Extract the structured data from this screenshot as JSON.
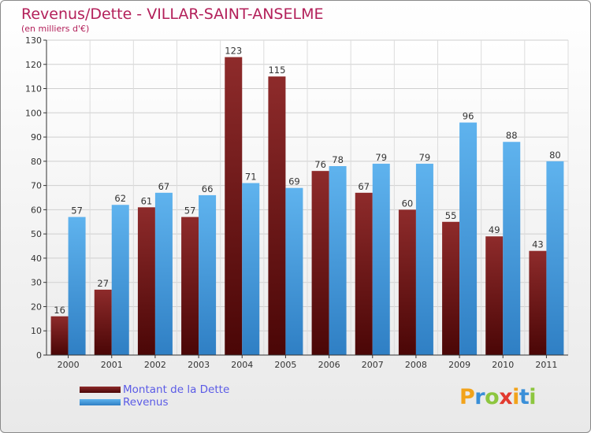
{
  "header": {
    "title": "Revenus/Dette - VILLAR-SAINT-ANSELME",
    "subtitle": "(en milliers d'€)"
  },
  "legend": {
    "items": [
      {
        "label": "Montant de la Dette",
        "color": "#7a1818"
      },
      {
        "label": "Revenus",
        "color": "#4aa3e6"
      }
    ]
  },
  "logo": {
    "letters": [
      {
        "ch": "P",
        "color": "#f2a31b"
      },
      {
        "ch": "r",
        "color": "#3a8fd8"
      },
      {
        "ch": "o",
        "color": "#8dc63f"
      },
      {
        "ch": "x",
        "color": "#e23a2f"
      },
      {
        "ch": "i",
        "color": "#f2a31b"
      },
      {
        "ch": "t",
        "color": "#3a8fd8"
      },
      {
        "ch": "i",
        "color": "#8dc63f"
      }
    ]
  },
  "chart_data": {
    "type": "bar",
    "categories": [
      "2000",
      "2001",
      "2002",
      "2003",
      "2004",
      "2005",
      "2006",
      "2007",
      "2008",
      "2009",
      "2010",
      "2011"
    ],
    "series": [
      {
        "name": "Montant de la Dette",
        "values": [
          16,
          27,
          61,
          57,
          123,
          115,
          76,
          67,
          60,
          55,
          49,
          43
        ],
        "color": "#7a1818"
      },
      {
        "name": "Revenus",
        "values": [
          57,
          62,
          67,
          66,
          71,
          69,
          78,
          79,
          79,
          96,
          88,
          80
        ],
        "color": "#4aa3e6"
      }
    ],
    "ylim": [
      0,
      130
    ],
    "yticks": [
      0,
      10,
      20,
      30,
      40,
      50,
      60,
      70,
      80,
      90,
      100,
      110,
      120,
      130
    ],
    "grid": true,
    "data_labels": true
  }
}
